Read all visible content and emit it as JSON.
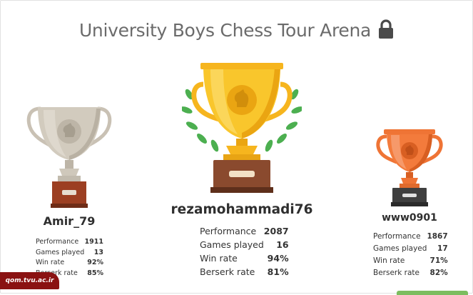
{
  "title": "University Boys Chess Tour Arena",
  "icons": {
    "lock": "lock-icon",
    "trophy": "trophy-icon",
    "laurel": "laurel-icon"
  },
  "colors": {
    "gold": "#f6b51e",
    "silver": "#c9c1b4",
    "bronze": "#ef7435",
    "watermark_bg": "#8a1212"
  },
  "stat_labels": {
    "performance": "Performance",
    "games_played": "Games played",
    "win_rate": "Win rate",
    "berserk_rate": "Berserk rate"
  },
  "podium": {
    "first": {
      "rank": 1,
      "name": "rezamohammadi76",
      "performance": "2087",
      "games_played": "16",
      "win_rate": "94%",
      "berserk_rate": "81%"
    },
    "second": {
      "rank": 2,
      "name": "Amir_79",
      "performance": "1911",
      "games_played": "13",
      "win_rate": "92%",
      "berserk_rate": "85%"
    },
    "third": {
      "rank": 3,
      "name": "www0901",
      "performance": "1867",
      "games_played": "17",
      "win_rate": "71%",
      "berserk_rate": "82%"
    }
  },
  "watermark": "qom.tvu.ac.ir"
}
